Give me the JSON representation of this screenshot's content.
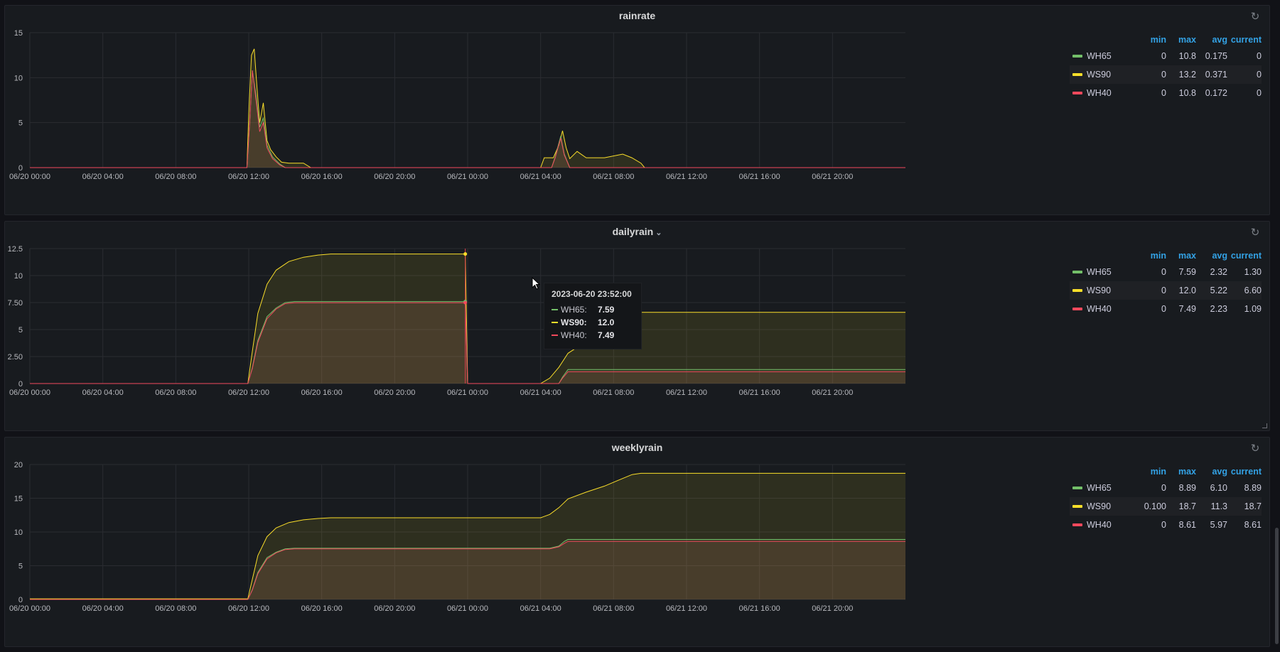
{
  "panels": [
    {
      "title": "rainrate",
      "show_chevron": false,
      "y_ticks": [
        "15",
        "10",
        "5",
        "0"
      ],
      "x_ticks": [
        "06/20 00:00",
        "06/20 04:00",
        "06/20 08:00",
        "06/20 12:00",
        "06/20 16:00",
        "06/20 20:00",
        "06/21 00:00",
        "06/21 04:00",
        "06/21 08:00",
        "06/21 12:00",
        "06/21 16:00",
        "06/21 20:00"
      ],
      "legend": {
        "headers": [
          "min",
          "max",
          "avg",
          "current"
        ],
        "rows": [
          {
            "name": "WH65",
            "color": "#73bf69",
            "min": "0",
            "max": "10.8",
            "avg": "0.175",
            "current": "0"
          },
          {
            "name": "WS90",
            "color": "#fade2a",
            "min": "0",
            "max": "13.2",
            "avg": "0.371",
            "current": "0"
          },
          {
            "name": "WH40",
            "color": "#f2495c",
            "min": "0",
            "max": "10.8",
            "avg": "0.172",
            "current": "0"
          }
        ]
      }
    },
    {
      "title": "dailyrain",
      "show_chevron": true,
      "y_ticks": [
        "12.5",
        "10",
        "7.50",
        "5",
        "2.50",
        "0"
      ],
      "x_ticks": [
        "06/20 00:00",
        "06/20 04:00",
        "06/20 08:00",
        "06/20 12:00",
        "06/20 16:00",
        "06/20 20:00",
        "06/21 00:00",
        "06/21 04:00",
        "06/21 08:00",
        "06/21 12:00",
        "06/21 16:00",
        "06/21 20:00"
      ],
      "legend": {
        "headers": [
          "min",
          "max",
          "avg",
          "current"
        ],
        "rows": [
          {
            "name": "WH65",
            "color": "#73bf69",
            "min": "0",
            "max": "7.59",
            "avg": "2.32",
            "current": "1.30"
          },
          {
            "name": "WS90",
            "color": "#fade2a",
            "min": "0",
            "max": "12.0",
            "avg": "5.22",
            "current": "6.60"
          },
          {
            "name": "WH40",
            "color": "#f2495c",
            "min": "0",
            "max": "7.49",
            "avg": "2.23",
            "current": "1.09"
          }
        ]
      }
    },
    {
      "title": "weeklyrain",
      "show_chevron": false,
      "y_ticks": [
        "20",
        "15",
        "10",
        "5",
        "0"
      ],
      "x_ticks": [
        "06/20 00:00",
        "06/20 04:00",
        "06/20 08:00",
        "06/20 12:00",
        "06/20 16:00",
        "06/20 20:00",
        "06/21 00:00",
        "06/21 04:00",
        "06/21 08:00",
        "06/21 12:00",
        "06/21 16:00",
        "06/21 20:00"
      ],
      "legend": {
        "headers": [
          "min",
          "max",
          "avg",
          "current"
        ],
        "rows": [
          {
            "name": "WH65",
            "color": "#73bf69",
            "min": "0",
            "max": "8.89",
            "avg": "6.10",
            "current": "8.89"
          },
          {
            "name": "WS90",
            "color": "#fade2a",
            "min": "0.100",
            "max": "18.7",
            "avg": "11.3",
            "current": "18.7"
          },
          {
            "name": "WH40",
            "color": "#f2495c",
            "min": "0",
            "max": "8.61",
            "avg": "5.97",
            "current": "8.61"
          }
        ]
      }
    }
  ],
  "tooltip": {
    "time": "2023-06-20 23:52:00",
    "rows": [
      {
        "name": "WH65:",
        "value": "7.59",
        "color": "#73bf69",
        "bold": false
      },
      {
        "name": "WS90:",
        "value": "12.0",
        "color": "#fade2a",
        "bold": true
      },
      {
        "name": "WH40:",
        "value": "7.49",
        "color": "#f2495c",
        "bold": false
      }
    ]
  },
  "chart_data": [
    {
      "type": "area",
      "title": "rainrate",
      "x_unit": "hours since 06/20 00:00",
      "ylim": [
        0,
        15
      ],
      "series": [
        {
          "name": "WS90",
          "color": "#fade2a",
          "points": [
            [
              0,
              0
            ],
            [
              11.9,
              0
            ],
            [
              12.0,
              6
            ],
            [
              12.15,
              12.5
            ],
            [
              12.3,
              13.2
            ],
            [
              12.45,
              9
            ],
            [
              12.6,
              5
            ],
            [
              12.8,
              7.2
            ],
            [
              13.0,
              3
            ],
            [
              13.2,
              2
            ],
            [
              13.5,
              1.2
            ],
            [
              13.8,
              0.6
            ],
            [
              14.2,
              0.5
            ],
            [
              15.0,
              0.5
            ],
            [
              15.4,
              0
            ],
            [
              28.0,
              0
            ],
            [
              28.2,
              1.1
            ],
            [
              28.7,
              1.1
            ],
            [
              29.0,
              2.5
            ],
            [
              29.2,
              4.1
            ],
            [
              29.4,
              2.2
            ],
            [
              29.6,
              1
            ],
            [
              30.0,
              1.8
            ],
            [
              30.5,
              1.1
            ],
            [
              31.5,
              1.1
            ],
            [
              32.5,
              1.5
            ],
            [
              33.0,
              1.1
            ],
            [
              33.5,
              0.5
            ],
            [
              33.7,
              0
            ],
            [
              48,
              0
            ]
          ]
        },
        {
          "name": "WH65",
          "color": "#73bf69",
          "points": [
            [
              0,
              0
            ],
            [
              11.9,
              0
            ],
            [
              12.05,
              5
            ],
            [
              12.2,
              10.8
            ],
            [
              12.4,
              8
            ],
            [
              12.6,
              4.5
            ],
            [
              12.8,
              5.5
            ],
            [
              13.0,
              2.5
            ],
            [
              13.3,
              1.2
            ],
            [
              13.7,
              0.4
            ],
            [
              14.0,
              0
            ],
            [
              28.6,
              0
            ],
            [
              28.8,
              1.2
            ],
            [
              29.1,
              3.5
            ],
            [
              29.3,
              1.5
            ],
            [
              29.6,
              0
            ],
            [
              48,
              0
            ]
          ]
        },
        {
          "name": "WH40",
          "color": "#f2495c",
          "points": [
            [
              0,
              0
            ],
            [
              11.9,
              0
            ],
            [
              12.05,
              5
            ],
            [
              12.2,
              10.8
            ],
            [
              12.4,
              7.5
            ],
            [
              12.6,
              4
            ],
            [
              12.8,
              5
            ],
            [
              13.0,
              2.2
            ],
            [
              13.3,
              1
            ],
            [
              13.7,
              0.3
            ],
            [
              14.0,
              0
            ],
            [
              28.6,
              0
            ],
            [
              28.8,
              1.1
            ],
            [
              29.1,
              3.3
            ],
            [
              29.3,
              1.4
            ],
            [
              29.6,
              0
            ],
            [
              48,
              0
            ]
          ]
        }
      ]
    },
    {
      "type": "area",
      "title": "dailyrain",
      "x_unit": "hours since 06/20 00:00",
      "ylim": [
        0,
        12.5
      ],
      "series": [
        {
          "name": "WS90",
          "color": "#fade2a",
          "points": [
            [
              0,
              0
            ],
            [
              11.95,
              0
            ],
            [
              12.2,
              3
            ],
            [
              12.5,
              6.5
            ],
            [
              13.0,
              9.2
            ],
            [
              13.5,
              10.5
            ],
            [
              14.2,
              11.3
            ],
            [
              15.0,
              11.7
            ],
            [
              15.8,
              11.9
            ],
            [
              16.5,
              12.0
            ],
            [
              23.87,
              12.0
            ],
            [
              24.0,
              0
            ],
            [
              28.0,
              0
            ],
            [
              28.5,
              0.5
            ],
            [
              29.0,
              1.5
            ],
            [
              29.5,
              2.8
            ],
            [
              30.5,
              3.9
            ],
            [
              31.5,
              4.8
            ],
            [
              32.2,
              5.6
            ],
            [
              33.0,
              6.4
            ],
            [
              33.5,
              6.6
            ],
            [
              48,
              6.6
            ]
          ]
        },
        {
          "name": "WH65",
          "color": "#73bf69",
          "points": [
            [
              0,
              0
            ],
            [
              11.95,
              0
            ],
            [
              12.2,
              1.5
            ],
            [
              12.5,
              4
            ],
            [
              13.0,
              6.2
            ],
            [
              13.5,
              7.0
            ],
            [
              14.0,
              7.5
            ],
            [
              14.5,
              7.59
            ],
            [
              23.87,
              7.59
            ],
            [
              24.0,
              0
            ],
            [
              29.0,
              0
            ],
            [
              29.2,
              0.6
            ],
            [
              29.5,
              1.3
            ],
            [
              48,
              1.3
            ]
          ]
        },
        {
          "name": "WH40",
          "color": "#f2495c",
          "points": [
            [
              0,
              0
            ],
            [
              11.95,
              0
            ],
            [
              12.2,
              1.4
            ],
            [
              12.5,
              3.8
            ],
            [
              13.0,
              6.0
            ],
            [
              13.5,
              6.9
            ],
            [
              14.0,
              7.4
            ],
            [
              14.5,
              7.49
            ],
            [
              23.87,
              7.49
            ],
            [
              24.0,
              0
            ],
            [
              29.0,
              0
            ],
            [
              29.2,
              0.5
            ],
            [
              29.5,
              1.09
            ],
            [
              48,
              1.09
            ]
          ]
        }
      ]
    },
    {
      "type": "area",
      "title": "weeklyrain",
      "x_unit": "hours since 06/20 00:00",
      "ylim": [
        0,
        20
      ],
      "series": [
        {
          "name": "WS90",
          "color": "#fade2a",
          "points": [
            [
              0,
              0.1
            ],
            [
              11.95,
              0.1
            ],
            [
              12.2,
              3
            ],
            [
              12.5,
              6.5
            ],
            [
              13.0,
              9.3
            ],
            [
              13.5,
              10.6
            ],
            [
              14.2,
              11.4
            ],
            [
              15.0,
              11.8
            ],
            [
              15.8,
              12.0
            ],
            [
              16.5,
              12.1
            ],
            [
              28.0,
              12.1
            ],
            [
              28.5,
              12.6
            ],
            [
              29.0,
              13.6
            ],
            [
              29.5,
              14.9
            ],
            [
              30.5,
              15.9
            ],
            [
              31.5,
              16.8
            ],
            [
              32.2,
              17.6
            ],
            [
              33.0,
              18.5
            ],
            [
              33.5,
              18.7
            ],
            [
              48,
              18.7
            ]
          ]
        },
        {
          "name": "WH65",
          "color": "#73bf69",
          "points": [
            [
              0,
              0
            ],
            [
              11.95,
              0
            ],
            [
              12.2,
              1.5
            ],
            [
              12.5,
              4
            ],
            [
              13.0,
              6.2
            ],
            [
              13.5,
              7.0
            ],
            [
              14.0,
              7.5
            ],
            [
              14.5,
              7.59
            ],
            [
              28.5,
              7.59
            ],
            [
              29.0,
              7.9
            ],
            [
              29.3,
              8.6
            ],
            [
              29.5,
              8.89
            ],
            [
              48,
              8.89
            ]
          ]
        },
        {
          "name": "WH40",
          "color": "#f2495c",
          "points": [
            [
              0,
              0
            ],
            [
              11.95,
              0
            ],
            [
              12.2,
              1.4
            ],
            [
              12.5,
              3.8
            ],
            [
              13.0,
              6.0
            ],
            [
              13.5,
              6.9
            ],
            [
              14.0,
              7.4
            ],
            [
              14.5,
              7.49
            ],
            [
              28.5,
              7.49
            ],
            [
              29.0,
              7.8
            ],
            [
              29.3,
              8.3
            ],
            [
              29.5,
              8.61
            ],
            [
              48,
              8.61
            ]
          ]
        }
      ]
    }
  ]
}
